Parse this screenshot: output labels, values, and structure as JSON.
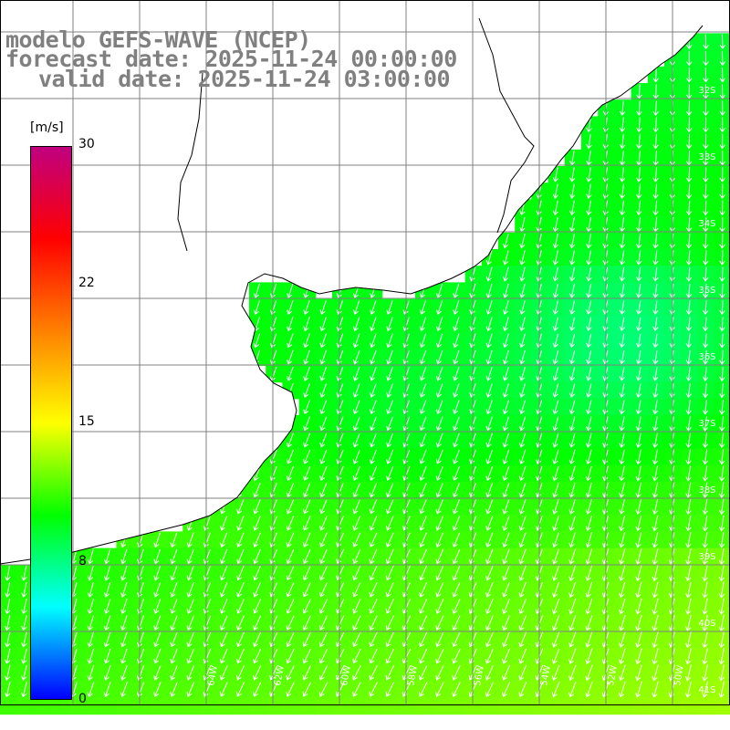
{
  "title": {
    "line1": "modelo GEFS-WAVE (NCEP)",
    "line2": "forecast date: 2025-11-24 00:00:00",
    "line3": "valid date: 2025-11-24 03:00:00"
  },
  "colorbar": {
    "unit": "[m/s]",
    "min": 0,
    "max": 30,
    "ticks": [
      {
        "label": "30",
        "value": 30
      },
      {
        "label": "22",
        "value": 22
      },
      {
        "label": "15",
        "value": 15
      },
      {
        "label": "8",
        "value": 8
      },
      {
        "label": "0",
        "value": 0
      }
    ],
    "stops": [
      "#0000ff",
      "#00ffff",
      "#00ff00",
      "#ffff00",
      "#ff8000",
      "#ff0000",
      "#c00080"
    ]
  },
  "lat_labels": [
    "32S",
    "33S",
    "34S",
    "35S",
    "36S",
    "37S",
    "38S",
    "39S",
    "40S",
    "41S"
  ],
  "lon_labels": [
    "64W",
    "62W",
    "60W",
    "58W",
    "56W",
    "54W",
    "52W",
    "50W"
  ],
  "colors": {
    "land": "#ffffff",
    "coast": "#000000",
    "grid": "#808080",
    "arrow": "#ffffff"
  },
  "wind_field": {
    "grid": "GEFS-WAVE 10 m wind",
    "speed_units": "m/s",
    "direction": "from north-east"
  }
}
